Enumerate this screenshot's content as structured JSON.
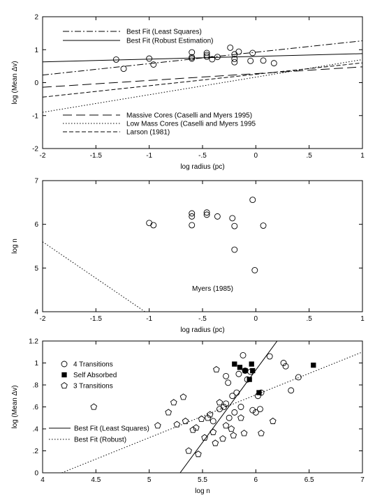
{
  "chart_data": [
    {
      "type": "scatter",
      "xlabel": "log radius (pc)",
      "ylabel": "log (Mean Δv)",
      "xlim": [
        -2,
        1
      ],
      "ylim": [
        -2,
        2
      ],
      "xticks": [
        {
          "value": -2,
          "label": "-2"
        },
        {
          "value": -1.5,
          "label": "-1.5"
        },
        {
          "value": -1,
          "label": "-1"
        },
        {
          "value": -0.5,
          "label": "-.5"
        },
        {
          "value": 0,
          "label": "0"
        },
        {
          "value": 0.5,
          "label": ".5"
        },
        {
          "value": 1,
          "label": "1"
        }
      ],
      "yticks": [
        {
          "value": -2,
          "label": "-2"
        },
        {
          "value": -1,
          "label": "-1"
        },
        {
          "value": 0,
          "label": "0"
        },
        {
          "value": 1,
          "label": "1"
        },
        {
          "value": 2,
          "label": "2"
        }
      ],
      "points": [
        {
          "x": -1.31,
          "y": 0.7
        },
        {
          "x": -1.24,
          "y": 0.42
        },
        {
          "x": -1.0,
          "y": 0.73
        },
        {
          "x": -0.96,
          "y": 0.55
        },
        {
          "x": -0.6,
          "y": 0.92
        },
        {
          "x": -0.6,
          "y": 0.77
        },
        {
          "x": -0.6,
          "y": 0.73
        },
        {
          "x": -0.46,
          "y": 0.9
        },
        {
          "x": -0.46,
          "y": 0.84
        },
        {
          "x": -0.46,
          "y": 0.79
        },
        {
          "x": -0.41,
          "y": 0.71
        },
        {
          "x": -0.36,
          "y": 0.78
        },
        {
          "x": -0.24,
          "y": 1.06
        },
        {
          "x": -0.2,
          "y": 0.86
        },
        {
          "x": -0.2,
          "y": 0.72
        },
        {
          "x": -0.2,
          "y": 0.62
        },
        {
          "x": -0.16,
          "y": 0.94
        },
        {
          "x": -0.03,
          "y": 0.9
        },
        {
          "x": 0.07,
          "y": 0.67
        },
        {
          "x": 0.17,
          "y": 0.59
        },
        {
          "x": -0.05,
          "y": 0.66
        }
      ],
      "lines": [
        {
          "name": "Best Fit (Least Squares)",
          "dash": "dashdot",
          "x1": -2,
          "y1": 0.23,
          "x2": 1,
          "y2": 1.27
        },
        {
          "name": "Best Fit (Robust Estimation)",
          "dash": "solid",
          "x1": -2,
          "y1": 0.63,
          "x2": 1,
          "y2": 0.88
        },
        {
          "name": "Massive Cores (Caselli and Myers 1995)",
          "dash": "longdash",
          "x1": -2,
          "y1": -0.14,
          "x2": 1,
          "y2": 0.48
        },
        {
          "name": "Low Mass Cores (Caselli and Myers 1995",
          "dash": "dotted",
          "x1": -2,
          "y1": -0.9,
          "x2": 1,
          "y2": 0.7
        },
        {
          "name": "Larson (1981)",
          "dash": "shortdash",
          "x1": -2,
          "y1": -0.44,
          "x2": 1,
          "y2": 0.6
        }
      ],
      "legend_top": [
        "Best Fit (Least Squares)",
        "Best Fit (Robust Estimation)"
      ],
      "legend_bottom": [
        "Massive Cores (Caselli and Myers 1995)",
        "Low Mass Cores (Caselli and Myers 1995",
        "Larson (1981)"
      ]
    },
    {
      "type": "scatter",
      "xlabel": "log radius (pc)",
      "ylabel": "log n",
      "xlim": [
        -2,
        1
      ],
      "ylim": [
        4,
        7
      ],
      "xticks": [
        {
          "value": -2,
          "label": "-2"
        },
        {
          "value": -1.5,
          "label": "-1.5"
        },
        {
          "value": -1,
          "label": "-1"
        },
        {
          "value": -0.5,
          "label": "-.5"
        },
        {
          "value": 0,
          "label": "0"
        },
        {
          "value": 0.5,
          "label": ".5"
        },
        {
          "value": 1,
          "label": "1"
        }
      ],
      "yticks": [
        {
          "value": 4,
          "label": "4"
        },
        {
          "value": 5,
          "label": "5"
        },
        {
          "value": 6,
          "label": "6"
        },
        {
          "value": 7,
          "label": "7"
        }
      ],
      "points": [
        {
          "x": -1.0,
          "y": 6.03
        },
        {
          "x": -0.96,
          "y": 5.98
        },
        {
          "x": -0.6,
          "y": 6.25
        },
        {
          "x": -0.6,
          "y": 6.18
        },
        {
          "x": -0.6,
          "y": 5.98
        },
        {
          "x": -0.46,
          "y": 6.27
        },
        {
          "x": -0.46,
          "y": 6.22
        },
        {
          "x": -0.36,
          "y": 6.18
        },
        {
          "x": -0.22,
          "y": 6.14
        },
        {
          "x": -0.2,
          "y": 5.96
        },
        {
          "x": -0.2,
          "y": 5.42
        },
        {
          "x": -0.03,
          "y": 6.56
        },
        {
          "x": -0.01,
          "y": 4.95
        },
        {
          "x": 0.07,
          "y": 5.97
        }
      ],
      "lines": [
        {
          "name": "Myers  (1985)",
          "dash": "dotted",
          "x1": -2,
          "y1": 5.6,
          "x2": -1.04,
          "y2": 4.0
        }
      ],
      "annotation": "Myers  (1985)"
    },
    {
      "type": "scatter",
      "xlabel": "log n",
      "ylabel": "log  (Mean  Δv)",
      "xlim": [
        4,
        7
      ],
      "ylim": [
        0,
        1.2
      ],
      "xticks": [
        {
          "value": 4,
          "label": "4"
        },
        {
          "value": 4.5,
          "label": "4.5"
        },
        {
          "value": 5,
          "label": "5"
        },
        {
          "value": 5.5,
          "label": "5.5"
        },
        {
          "value": 6,
          "label": "6"
        },
        {
          "value": 6.5,
          "label": "6.5"
        },
        {
          "value": 7,
          "label": "7"
        }
      ],
      "yticks": [
        {
          "value": 0,
          "label": "0"
        },
        {
          "value": 0.2,
          "label": ".2"
        },
        {
          "value": 0.4,
          "label": ".4"
        },
        {
          "value": 0.6,
          "label": ".6"
        },
        {
          "value": 0.8,
          "label": ".8"
        },
        {
          "value": 1,
          "label": "1"
        },
        {
          "value": 1.2,
          "label": "1.2"
        }
      ],
      "series": [
        {
          "name": "4 Transitions",
          "marker": "circle",
          "points": [
            {
              "x": 5.6,
              "y": 0.47
            },
            {
              "x": 5.66,
              "y": 0.58
            },
            {
              "x": 5.7,
              "y": 0.6
            },
            {
              "x": 5.72,
              "y": 0.63
            },
            {
              "x": 5.72,
              "y": 0.88
            },
            {
              "x": 5.74,
              "y": 0.82
            },
            {
              "x": 5.75,
              "y": 0.5
            },
            {
              "x": 5.78,
              "y": 0.7
            },
            {
              "x": 5.8,
              "y": 0.55
            },
            {
              "x": 5.82,
              "y": 0.73
            },
            {
              "x": 5.84,
              "y": 0.9
            },
            {
              "x": 5.86,
              "y": 0.6
            },
            {
              "x": 5.88,
              "y": 1.07
            },
            {
              "x": 5.9,
              "y": 0.93
            },
            {
              "x": 5.92,
              "y": 0.85
            },
            {
              "x": 5.95,
              "y": 0.92
            },
            {
              "x": 5.97,
              "y": 0.57
            },
            {
              "x": 6.0,
              "y": 0.55
            },
            {
              "x": 6.02,
              "y": 0.7
            },
            {
              "x": 6.04,
              "y": 0.58
            },
            {
              "x": 6.05,
              "y": 0.73
            },
            {
              "x": 6.13,
              "y": 1.06
            },
            {
              "x": 6.26,
              "y": 1.0
            },
            {
              "x": 6.28,
              "y": 0.97
            },
            {
              "x": 6.33,
              "y": 0.75
            },
            {
              "x": 6.4,
              "y": 0.87
            }
          ]
        },
        {
          "name": "Self Absorbed",
          "marker": "square",
          "points": [
            {
              "x": 5.8,
              "y": 0.99
            },
            {
              "x": 5.85,
              "y": 0.96
            },
            {
              "x": 5.9,
              "y": 0.93
            },
            {
              "x": 5.96,
              "y": 0.99
            },
            {
              "x": 5.97,
              "y": 0.93
            },
            {
              "x": 5.94,
              "y": 0.85
            },
            {
              "x": 6.03,
              "y": 0.73
            },
            {
              "x": 6.54,
              "y": 0.98
            }
          ]
        },
        {
          "name": "3 Transitions",
          "marker": "pentagon",
          "points": [
            {
              "x": 4.48,
              "y": 0.6
            },
            {
              "x": 5.08,
              "y": 0.43
            },
            {
              "x": 5.18,
              "y": 0.55
            },
            {
              "x": 5.23,
              "y": 0.64
            },
            {
              "x": 5.26,
              "y": 0.44
            },
            {
              "x": 5.32,
              "y": 0.69
            },
            {
              "x": 5.34,
              "y": 0.47
            },
            {
              "x": 5.37,
              "y": 0.2
            },
            {
              "x": 5.41,
              "y": 0.39
            },
            {
              "x": 5.44,
              "y": 0.41
            },
            {
              "x": 5.46,
              "y": 0.17
            },
            {
              "x": 5.49,
              "y": 0.49
            },
            {
              "x": 5.52,
              "y": 0.32
            },
            {
              "x": 5.55,
              "y": 0.5
            },
            {
              "x": 5.57,
              "y": 0.53
            },
            {
              "x": 5.6,
              "y": 0.37
            },
            {
              "x": 5.62,
              "y": 0.27
            },
            {
              "x": 5.63,
              "y": 0.94
            },
            {
              "x": 5.66,
              "y": 0.64
            },
            {
              "x": 5.69,
              "y": 0.31
            },
            {
              "x": 5.72,
              "y": 0.43
            },
            {
              "x": 5.77,
              "y": 0.4
            },
            {
              "x": 5.79,
              "y": 0.34
            },
            {
              "x": 5.86,
              "y": 0.5
            },
            {
              "x": 5.89,
              "y": 0.36
            },
            {
              "x": 6.05,
              "y": 0.36
            },
            {
              "x": 6.16,
              "y": 0.47
            }
          ]
        }
      ],
      "lines": [
        {
          "name": "Best Fit (Least Squares)",
          "dash": "solid",
          "x1": 5.29,
          "y1": 0.0,
          "x2": 6.2,
          "y2": 1.2
        },
        {
          "name": "Best Fit (Robust)",
          "dash": "dotted",
          "x1": 4.18,
          "y1": 0.0,
          "x2": 7.0,
          "y2": 1.1
        }
      ]
    }
  ]
}
